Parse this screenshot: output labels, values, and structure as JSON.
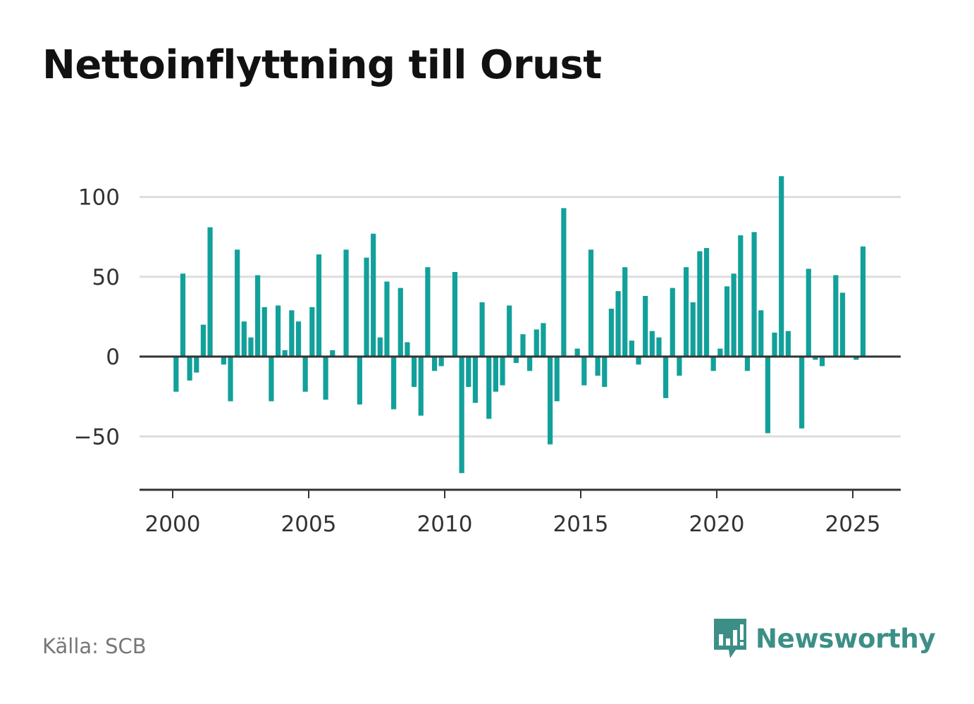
{
  "title": "Nettoinflyttning till Orust",
  "source": "Källa: SCB",
  "brand": "Newsworthy",
  "colors": {
    "bar": "#12a09a",
    "grid": "#dddddd",
    "axis": "#333333",
    "brand": "#3c8f87"
  },
  "chart_data": {
    "type": "bar",
    "title": "Nettoinflyttning till Orust",
    "xlabel": "",
    "ylabel": "",
    "ylim": [
      -84,
      114
    ],
    "yticks": [
      100,
      50,
      0,
      -50
    ],
    "ytick_labels": [
      "100",
      "50",
      "0",
      "−50"
    ],
    "xticks": [
      2000,
      2005,
      2010,
      2015,
      2020,
      2025
    ],
    "xtick_labels": [
      "2000",
      "2005",
      "2010",
      "2015",
      "2020",
      "2025"
    ],
    "grid": true,
    "x": [
      2000.125,
      2000.375,
      2000.625,
      2000.875,
      2001.125,
      2001.375,
      2001.625,
      2001.875,
      2002.125,
      2002.375,
      2002.625,
      2002.875,
      2003.125,
      2003.375,
      2003.625,
      2003.875,
      2004.125,
      2004.375,
      2004.625,
      2004.875,
      2005.125,
      2005.375,
      2005.625,
      2005.875,
      2006.125,
      2006.375,
      2006.625,
      2006.875,
      2007.125,
      2007.375,
      2007.625,
      2007.875,
      2008.125,
      2008.375,
      2008.625,
      2008.875,
      2009.125,
      2009.375,
      2009.625,
      2009.875,
      2010.125,
      2010.375,
      2010.625,
      2010.875,
      2011.125,
      2011.375,
      2011.625,
      2011.875,
      2012.125,
      2012.375,
      2012.625,
      2012.875,
      2013.125,
      2013.375,
      2013.625,
      2013.875,
      2014.125,
      2014.375,
      2014.625,
      2014.875,
      2015.125,
      2015.375,
      2015.625,
      2015.875,
      2016.125,
      2016.375,
      2016.625,
      2016.875,
      2017.125,
      2017.375,
      2017.625,
      2017.875,
      2018.125,
      2018.375,
      2018.625,
      2018.875,
      2019.125,
      2019.375,
      2019.625,
      2019.875,
      2020.125,
      2020.375,
      2020.625,
      2020.875,
      2021.125,
      2021.375,
      2021.625,
      2021.875,
      2022.125,
      2022.375,
      2022.625,
      2022.875,
      2023.125,
      2023.375,
      2023.625,
      2023.875,
      2024.125,
      2024.375,
      2024.625,
      2024.875,
      2025.125,
      2025.375
    ],
    "values": [
      -22,
      52,
      -15,
      -10,
      20,
      81,
      0,
      -5,
      -28,
      67,
      22,
      12,
      51,
      31,
      -28,
      32,
      4,
      29,
      22,
      -22,
      31,
      64,
      -27,
      4,
      0,
      67,
      0,
      -30,
      62,
      77,
      12,
      47,
      -33,
      43,
      9,
      -19,
      -37,
      56,
      -9,
      -6,
      0,
      53,
      -73,
      -19,
      -29,
      34,
      -39,
      -22,
      -18,
      32,
      -4,
      14,
      -9,
      17,
      21,
      -55,
      -28,
      93,
      0,
      5,
      -18,
      67,
      -12,
      -19,
      30,
      41,
      56,
      10,
      -5,
      38,
      16,
      12,
      -26,
      43,
      -12,
      56,
      34,
      66,
      68,
      -9,
      5,
      44,
      52,
      76,
      -9,
      78,
      29,
      -48,
      15,
      113,
      16,
      0,
      -45,
      55,
      -2,
      -6,
      0,
      51,
      40,
      0,
      -2,
      69
    ]
  }
}
